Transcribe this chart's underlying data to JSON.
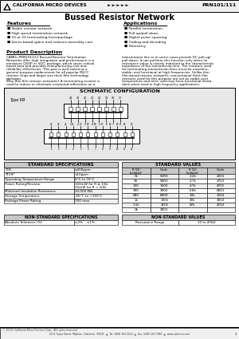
{
  "title": "Bussed Resistor Network",
  "part_number": "PRN101/111",
  "company": "CALIFORNIA MICRO DEVICES",
  "arrows": "► ► ► ► ►",
  "features_title": "Features",
  "features": [
    "Stable resistor network",
    "High speed termination network",
    "15 or 23 terminating lines/package",
    "Saves board space and reduces assembly cost"
  ],
  "applications_title": "Applications",
  "applications": [
    "Parallel termination",
    "Pull up/pull down",
    "Digital pulse squaring",
    "Coding and decoding",
    "Telemetry"
  ],
  "product_desc_title": "Product Description",
  "lines_left": [
    "CAMDs PRN101/111 Bussed Resistor Termination",
    "Networks offer high integration and performance in a",
    "miniature QSOP or SOIC package, which saves critical",
    "board area and provides manufacturing cost and",
    "reliability efficiencies. This part is well-suited as a",
    "general purpose replacement for all popular MLCC",
    "resistor chips and larger size thick film technology",
    "packages.",
    "Why thin film resistor networks? A terminating resistor is",
    "used to reduce or eliminate unwanted reflections on a"
  ],
  "lines_right": [
    "transmission line or in some cases provide DC pull-up/",
    "pull-down. It can perform this function only when its",
    "resistance value is closely matched to the characteristic",
    "impedance of the transmission line. The resistors used",
    "for terminating transmission lines must be noiseless,",
    "stable, and functional at high frequencies. Unlike thin",
    "film-based resistor networks, conventional thick film",
    "resistors used for this purpose are not as stable over",
    "temperature and time, and may have functional limita-",
    "tions when used in high frequency applications."
  ],
  "schematic_title": "SCHEMATIC CONFIGURATION",
  "type_label": "Type RB",
  "std_spec_title": "STANDARD SPECIFICATIONS",
  "std_spec_rows": [
    [
      "TCR",
      "±200ppm"
    ],
    [
      "TTCR*",
      "±10ppm"
    ],
    [
      "Operating Temperature Range",
      "0°C to 70°C"
    ],
    [
      "Power Rating/Resistor",
      "100mW for R ≥ 10Ω\n25mW for R < 10Ω"
    ],
    [
      "Minimum Insulation Resistance",
      "10,000 MΩ"
    ],
    [
      "Storage Temperature",
      "-65°C to +150°C"
    ],
    [
      "Package Power Rating",
      "700 max."
    ]
  ],
  "std_val_title": "STANDARD VALUES",
  "std_val_headers": [
    "R (Ω)\nIsolated",
    "Code",
    "R (Ω)\nIsolated",
    "Code"
  ],
  "std_val_rows": [
    [
      "51",
      "51R0",
      "2.2k",
      "2201"
    ],
    [
      "56",
      "56R0",
      "2.7k",
      "2701"
    ],
    [
      "100",
      "1000",
      "4.7k",
      "4701"
    ],
    [
      "390",
      "3900",
      "6.8k",
      "6801"
    ],
    [
      "680",
      "6800",
      "10k",
      "1002"
    ],
    [
      "1k",
      "1001",
      "30k",
      "3002"
    ],
    [
      "1.1k",
      "1101",
      "47k",
      "4702"
    ],
    [
      "2k",
      "2001",
      "",
      ""
    ]
  ],
  "non_std_spec_title": "NON-STANDARD SPECIFICATIONS",
  "non_std_spec_rows": [
    [
      "Absolute Tolerance (%)",
      "±2%  , ±1%"
    ]
  ],
  "non_std_val_title": "NON-STANDARD VALUES",
  "non_std_val_rows": [
    [
      "Resistance Range",
      "10 to 47kΩ"
    ]
  ],
  "footer_copy": "© 2000, California Micro Devices Corp.  All rights reserved.",
  "footer_addr": "2115 Topaz Street, Milpitas, California  95035  ▲  Tel: (408) 263-3214  ▲  Fax: (408) 263-7846  ▲  www.calmicro.com",
  "footer_page": "1",
  "bg_color": "#ffffff",
  "table_header_bg": "#c8c8c8",
  "schematic_bg": "#e8e8e8"
}
